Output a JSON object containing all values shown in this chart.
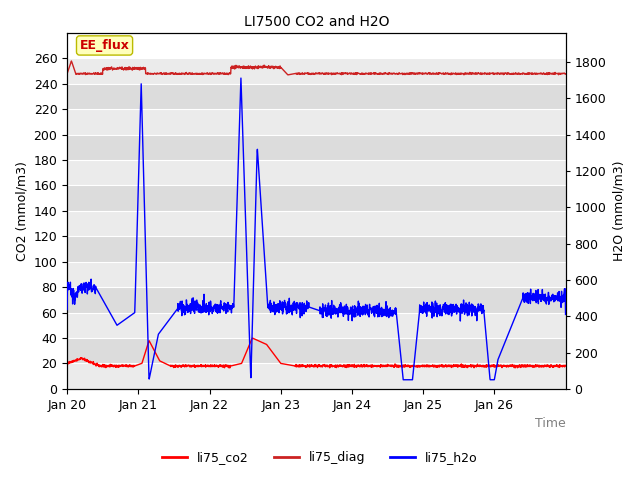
{
  "title": "LI7500 CO2 and H2O",
  "xlabel": "Time",
  "ylabel_left": "CO2 (mmol/m3)",
  "ylabel_right": "H2O (mmol/m3)",
  "ylim_left": [
    0,
    280
  ],
  "ylim_right": [
    0,
    1960
  ],
  "yticks_left": [
    0,
    20,
    40,
    60,
    80,
    100,
    120,
    140,
    160,
    180,
    200,
    220,
    240,
    260
  ],
  "yticks_right": [
    0,
    200,
    400,
    600,
    800,
    1000,
    1200,
    1400,
    1600,
    1800
  ],
  "xtick_labels": [
    "Jan 20",
    "Jan 21",
    "Jan 22",
    "Jan 23",
    "Jan 24",
    "Jan 25",
    "Jan 26"
  ],
  "color_co2": "#FF0000",
  "color_diag": "#CC2222",
  "color_h2o": "#0000FF",
  "band_color_dark": "#DCDCDC",
  "band_color_light": "#EBEBEB",
  "grid_color": "#FFFFFF",
  "annotation_text": "EE_flux",
  "annotation_bg": "#FFFFBB",
  "annotation_border": "#BBBB00",
  "legend_entries": [
    "li75_co2",
    "li75_diag",
    "li75_h2o"
  ]
}
